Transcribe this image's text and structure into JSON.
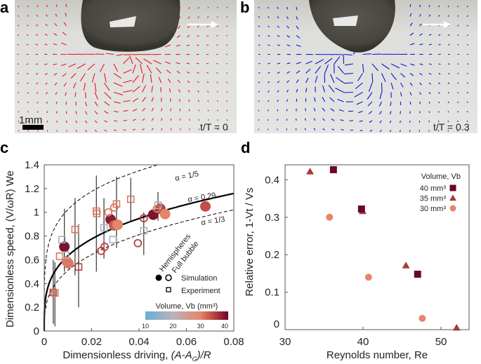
{
  "panels": {
    "a": {
      "label": "a",
      "scale_bar": "1mm",
      "time": "t/T = 0",
      "arrow_color": "#e8141c"
    },
    "b": {
      "label": "b",
      "time": "t/T = 0.3",
      "arrow_color": "#1010d8"
    },
    "c": {
      "label": "c"
    },
    "d": {
      "label": "d"
    }
  },
  "chart_data": [
    {
      "type": "scatter",
      "panel": "c",
      "xlabel": "Dimensionless driving, (A-A_G)/R",
      "xlabel_parts": [
        "Dimensionless driving, ",
        "(A-A",
        "G",
        ")/R"
      ],
      "ylabel": "Dimensionless speed, (V/ωR) We",
      "xlim": [
        0,
        0.08
      ],
      "ylim": [
        0,
        1.4
      ],
      "xticks": [
        0,
        0.02,
        0.04,
        0.06,
        0.08
      ],
      "xtick_labels": [
        "0",
        "0.02",
        "0.04",
        "0.06",
        "0.08"
      ],
      "yticks": [
        0,
        0.2,
        0.4,
        0.6,
        0.8,
        1.0,
        1.2,
        1.4
      ],
      "ytick_labels": [
        "0",
        "0.2",
        "0.4",
        "0.6",
        "0.8",
        "1",
        "1.2",
        "1.4"
      ],
      "curves": [
        {
          "label": "α = 1/5",
          "alpha": 0.2,
          "coef": 2.57,
          "style": "dashed"
        },
        {
          "label": "α = 0.29",
          "alpha": 0.29,
          "coef": 2.41,
          "style": "solid"
        },
        {
          "label": "α = 1/3",
          "alpha": 0.3333,
          "coef": 2.37,
          "style": "dashed"
        }
      ],
      "legend": {
        "col_headers": [
          "Hemispheres",
          "Full bubble"
        ],
        "simulation": "Simulation",
        "experiment": "Experiment",
        "colorbar_title": "Volume, Vb (mm³)",
        "colorbar_ticks": [
          10,
          20,
          30,
          40
        ],
        "colorbar_tick_labels": [
          "10",
          "20",
          "30",
          "40"
        ],
        "colorbar_stops": [
          {
            "v": 10,
            "color": "#6aaed6"
          },
          {
            "v": 20,
            "color": "#b9b2bb"
          },
          {
            "v": 30,
            "color": "#e5866a"
          },
          {
            "v": 35,
            "color": "#b8403e"
          },
          {
            "v": 40,
            "color": "#6a0828"
          }
        ]
      },
      "series": [
        {
          "name": "Simulation – Hemispheres",
          "marker": "filled-circle",
          "points": [
            [
              0.0085,
              0.71,
              39
            ],
            [
              0.0095,
              0.585,
              31
            ],
            [
              0.0102,
              0.57,
              31
            ],
            [
              0.028,
              0.94,
              38
            ],
            [
              0.0295,
              0.89,
              33
            ],
            [
              0.031,
              0.895,
              30
            ],
            [
              0.046,
              0.98,
              39
            ],
            [
              0.049,
              1.03,
              35
            ],
            [
              0.051,
              0.985,
              30
            ],
            [
              0.068,
              1.05,
              34
            ]
          ]
        },
        {
          "name": "Simulation – Full bubble",
          "marker": "open-circle",
          "points": [
            [
              0.024,
              0.675,
              35
            ],
            [
              0.0255,
              0.71,
              35
            ],
            [
              0.027,
              1.0,
              31
            ],
            [
              0.0295,
              1.04,
              31
            ],
            [
              0.0395,
              0.74,
              35
            ],
            [
              0.042,
              0.95,
              35
            ],
            [
              0.0475,
              1.03,
              31
            ]
          ]
        },
        {
          "name": "Experiment",
          "marker": "open-square",
          "points": [
            [
              0.0038,
              0.325,
              35
            ],
            [
              0.0045,
              0.32,
              31
            ],
            [
              0.0065,
              0.63,
              31
            ],
            [
              0.0075,
              0.77,
              17
            ],
            [
              0.009,
              0.64,
              20
            ],
            [
              0.013,
              0.855,
              31
            ],
            [
              0.0145,
              0.54,
              35
            ],
            [
              0.022,
              1.01,
              31
            ],
            [
              0.0222,
              0.99,
              31
            ],
            [
              0.0252,
              0.87,
              18
            ],
            [
              0.029,
              0.77,
              17
            ],
            [
              0.0305,
              1.07,
              31
            ],
            [
              0.0365,
              1.11,
              31
            ],
            [
              0.042,
              0.845,
              18
            ],
            [
              0.048,
              1.06,
              17
            ]
          ]
        }
      ],
      "error_bars": [
        [
          0.0038,
          0.06,
          0.6
        ],
        [
          0.0045,
          0.04,
          0.58
        ],
        [
          0.0085,
          0.5,
          1.03
        ],
        [
          0.013,
          0.47,
          1.12
        ],
        [
          0.0145,
          0.2,
          0.9
        ],
        [
          0.022,
          0.5,
          1.31
        ],
        [
          0.0252,
          0.61,
          1.12
        ],
        [
          0.0305,
          0.7,
          1.3
        ],
        [
          0.0365,
          0.92,
          1.29
        ],
        [
          0.042,
          0.64,
          1.0
        ],
        [
          0.048,
          0.93,
          1.17
        ]
      ]
    },
    {
      "type": "scatter",
      "panel": "d",
      "xlabel": "Reynolds number, Re",
      "ylabel": "Relative error, 1-Vt / Vs",
      "xlim": [
        30,
        53.6
      ],
      "ylim": [
        0,
        0.44
      ],
      "xticks": [
        30,
        40,
        50
      ],
      "xtick_labels": [
        "30",
        "40",
        "50"
      ],
      "yticks": [
        0,
        0.1,
        0.2,
        0.3,
        0.4
      ],
      "ytick_labels": [
        "0",
        "0.1",
        "0.2",
        "0.3",
        "0.4"
      ],
      "legend_title": "Volume, Vb",
      "series": [
        {
          "name": "40 mm³",
          "marker": "square",
          "color": "#6a0828",
          "points": [
            [
              36.2,
              0.427
            ],
            [
              39.8,
              0.322
            ],
            [
              47.0,
              0.148
            ]
          ]
        },
        {
          "name": "35 mm³",
          "marker": "triangle",
          "color": "#a83a3c",
          "points": [
            [
              33.2,
              0.422
            ],
            [
              39.95,
              0.316
            ],
            [
              45.5,
              0.171
            ],
            [
              52.0,
              0.005
            ]
          ]
        },
        {
          "name": "30 mm³",
          "marker": "circle",
          "color": "#e5866a",
          "points": [
            [
              35.7,
              0.3
            ],
            [
              40.7,
              0.14
            ],
            [
              47.6,
              0.03
            ]
          ]
        }
      ]
    }
  ]
}
